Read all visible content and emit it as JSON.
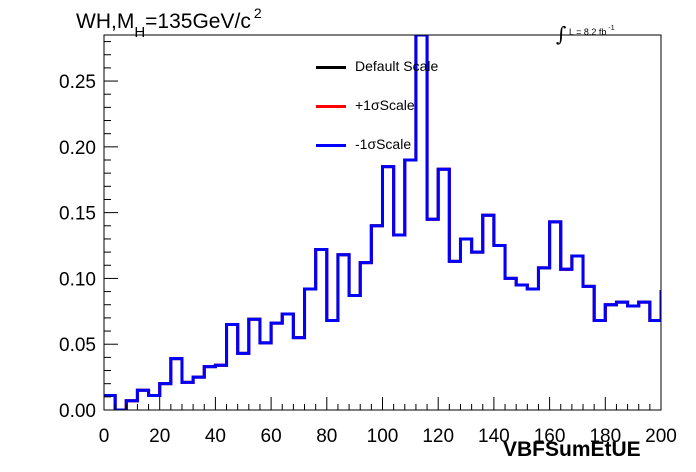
{
  "title": {
    "prefix": "WH,M",
    "subscript": "H",
    "main": "=135GeV/c",
    "superscript": "2"
  },
  "lumi": {
    "integral": "∫",
    "text": "L = 8.2 fb",
    "superscript": "-1"
  },
  "legend": [
    {
      "label": "Default Scale",
      "color": "#000000"
    },
    {
      "label": "+1σScale",
      "color": "#ff0000"
    },
    {
      "label": "-1σScale",
      "color": "#0000ff"
    }
  ],
  "chart_data": {
    "type": "line",
    "title": "",
    "xlabel": "VBFSumEtUE",
    "ylabel": "",
    "xlim": [
      0,
      200
    ],
    "ylim": [
      0,
      0.285
    ],
    "x_ticks": [
      "0",
      "20",
      "40",
      "60",
      "80",
      "100",
      "120",
      "140",
      "160",
      "180",
      "200"
    ],
    "y_ticks": [
      "0.00",
      "0.05",
      "0.10",
      "0.15",
      "0.20",
      "0.25"
    ],
    "bin_edges": [
      0,
      4,
      8,
      12,
      16,
      20,
      24,
      28,
      32,
      36,
      40,
      44,
      48,
      52,
      56,
      60,
      64,
      68,
      72,
      76,
      80,
      84,
      88,
      92,
      96,
      100,
      104,
      108,
      112,
      116,
      120,
      124,
      128,
      132,
      136,
      140,
      144,
      148,
      152,
      156,
      160,
      164,
      168,
      172,
      176,
      180,
      184,
      188,
      192,
      196,
      200
    ],
    "series": [
      {
        "name": "Default Scale",
        "color": "#000000",
        "values": [
          0.011,
          0.0,
          0.007,
          0.015,
          0.011,
          0.02,
          0.039,
          0.021,
          0.025,
          0.033,
          0.034,
          0.065,
          0.043,
          0.069,
          0.051,
          0.066,
          0.073,
          0.055,
          0.092,
          0.122,
          0.068,
          0.118,
          0.087,
          0.112,
          0.14,
          0.185,
          0.133,
          0.19,
          0.285,
          0.145,
          0.183,
          0.113,
          0.13,
          0.12,
          0.148,
          0.125,
          0.1,
          0.095,
          0.092,
          0.108,
          0.143,
          0.107,
          0.117,
          0.094,
          0.068,
          0.08,
          0.082,
          0.079,
          0.082,
          0.068,
          0.091
        ]
      },
      {
        "name": "+1σScale",
        "color": "#ff0000",
        "values": [
          0.011,
          0.0,
          0.007,
          0.015,
          0.011,
          0.02,
          0.039,
          0.021,
          0.025,
          0.033,
          0.034,
          0.065,
          0.043,
          0.069,
          0.051,
          0.066,
          0.073,
          0.055,
          0.092,
          0.122,
          0.068,
          0.118,
          0.087,
          0.112,
          0.14,
          0.185,
          0.133,
          0.19,
          0.285,
          0.145,
          0.183,
          0.113,
          0.13,
          0.12,
          0.148,
          0.125,
          0.1,
          0.095,
          0.092,
          0.108,
          0.143,
          0.107,
          0.117,
          0.094,
          0.068,
          0.08,
          0.082,
          0.079,
          0.082,
          0.068,
          0.091
        ]
      },
      {
        "name": "-1σScale",
        "color": "#0000ff",
        "values": [
          0.011,
          0.0,
          0.007,
          0.015,
          0.011,
          0.02,
          0.039,
          0.021,
          0.025,
          0.033,
          0.034,
          0.065,
          0.043,
          0.069,
          0.051,
          0.066,
          0.073,
          0.055,
          0.092,
          0.122,
          0.068,
          0.118,
          0.087,
          0.112,
          0.14,
          0.185,
          0.133,
          0.19,
          0.285,
          0.145,
          0.183,
          0.113,
          0.13,
          0.12,
          0.148,
          0.125,
          0.1,
          0.095,
          0.092,
          0.108,
          0.143,
          0.107,
          0.117,
          0.094,
          0.068,
          0.08,
          0.082,
          0.079,
          0.082,
          0.068,
          0.091
        ]
      }
    ]
  }
}
